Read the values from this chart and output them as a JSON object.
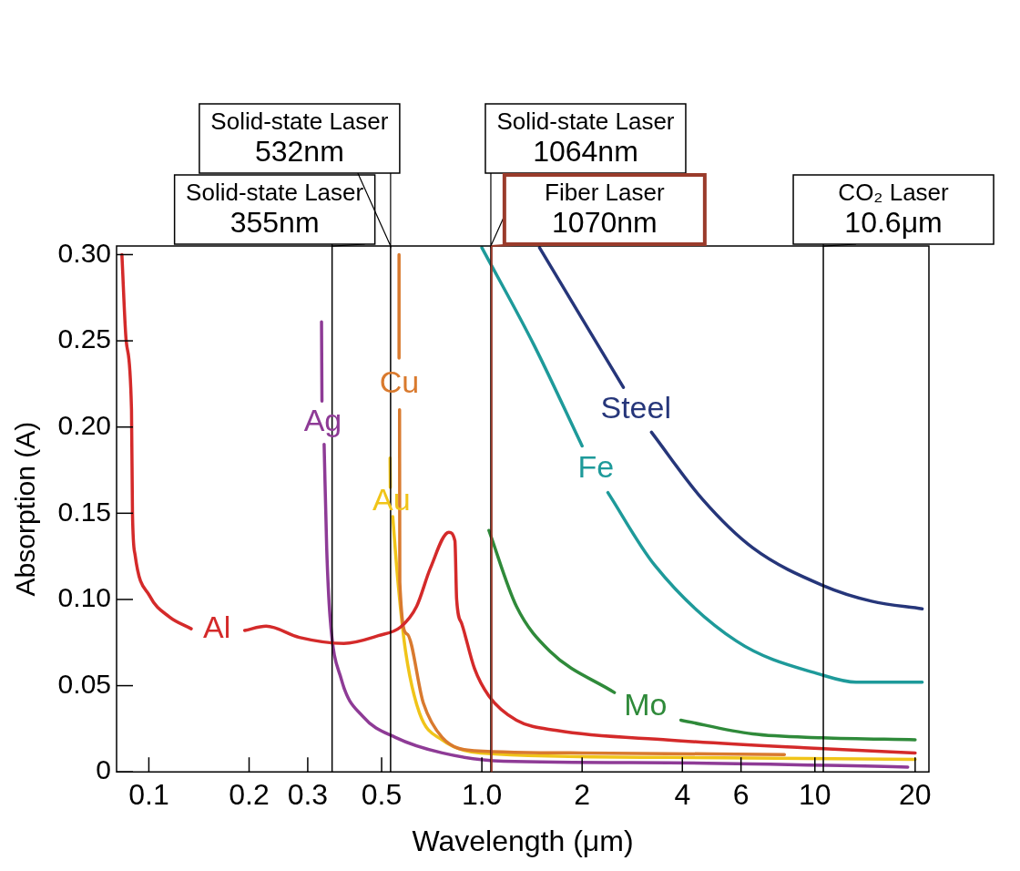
{
  "chart_data": {
    "type": "line",
    "xlabel": "Wavelength (μm)",
    "ylabel": "Absorption (A)",
    "log": "x",
    "legend": false,
    "marker": "none",
    "line_style": "solid",
    "xlim": [
      0.08,
      22
    ],
    "ylim": [
      0,
      0.305
    ],
    "xticks": [
      0.1,
      0.2,
      0.3,
      0.5,
      {
        "value": 1,
        "label": "1.0"
      },
      2,
      4,
      6,
      10,
      20
    ],
    "yticks": [
      0,
      0.05,
      {
        "value": 0.1,
        "label": "0.10"
      },
      0.15,
      {
        "value": 0.2,
        "label": "0.20"
      },
      0.25,
      {
        "value": 0.3,
        "label": "0.30"
      }
    ],
    "series": [
      {
        "name": "Al",
        "color": "#d42a2a",
        "x": [
          0.083,
          0.0855,
          0.0887,
          0.0893,
          0.0909,
          0.1006,
          0.115,
          0.134,
          0.16,
          0.194,
          0.225,
          0.283,
          0.385,
          0.489,
          0.57,
          0.637,
          0.7,
          0.796,
          0.83,
          0.84,
          0.87,
          0.95,
          1.05,
          1.27,
          1.68,
          3.64,
          9.3,
          20
        ],
        "values": [
          0.3,
          0.25,
          0.21,
          0.15,
          0.126,
          0.102,
          0.09,
          0.083,
          null,
          0.082,
          0.0845,
          0.078,
          0.0745,
          0.079,
          0.084,
          0.096,
          0.118,
          0.139,
          0.134,
          0.1,
          0.086,
          0.06,
          0.044,
          0.03,
          0.024,
          0.0185,
          0.014,
          0.011
        ]
      },
      {
        "name": "Ag",
        "color": "#8e3b96",
        "x": [
          0.33,
          0.331,
          0.333,
          0.336,
          0.342,
          0.35,
          0.378,
          0.44,
          0.55,
          0.76,
          1.16,
          3.64,
          19
        ],
        "values": [
          0.261,
          0.215,
          null,
          0.19,
          0.13,
          0.09,
          0.054,
          0.032,
          0.02,
          0.011,
          0.0062,
          0.0053,
          0.0028
        ]
      },
      {
        "name": "Cu",
        "color": "#d97a2e",
        "x": [
          0.564,
          0.564,
          0.565,
          0.566,
          0.567,
          0.596,
          0.667,
          0.76,
          0.95,
          2,
          8.1
        ],
        "values": [
          0.3,
          0.24,
          null,
          0.21,
          0.11,
          0.08,
          0.04,
          0.02,
          0.0123,
          0.011,
          0.01
        ]
      },
      {
        "name": "Au",
        "color": "#f0c419",
        "x": [
          0.53,
          0.531,
          0.535,
          0.54,
          0.56,
          0.59,
          0.65,
          0.76,
          0.99,
          3.6,
          20
        ],
        "values": [
          0.182,
          0.165,
          null,
          0.148,
          0.11,
          0.07,
          0.034,
          0.0185,
          0.011,
          0.0084,
          0.0073
        ]
      },
      {
        "name": "Fe",
        "color": "#1e9a9a",
        "x": [
          1.0,
          1.43,
          2.0,
          2.2,
          2.39,
          3.3,
          5.8,
          10.6,
          13.3,
          21
        ],
        "values": [
          0.304,
          0.248,
          0.189,
          null,
          0.162,
          0.12,
          0.076,
          0.056,
          0.052,
          0.052
        ]
      },
      {
        "name": "Steel",
        "color": "#26367a",
        "x": [
          1.49,
          2.66,
          2.9,
          3.23,
          4.6,
          6.5,
          10.6,
          14.8,
          21
        ],
        "values": [
          0.304,
          0.223,
          null,
          0.197,
          0.158,
          0.13,
          0.108,
          0.099,
          0.0946
        ]
      },
      {
        "name": "Mo",
        "color": "#2f8a3a",
        "x": [
          1.05,
          1.27,
          1.6,
          2.5,
          3.1,
          3.96,
          6.5,
          10.5,
          20
        ],
        "values": [
          0.14,
          0.096,
          0.07,
          0.046,
          null,
          0.03,
          0.022,
          0.0198,
          0.0186
        ]
      }
    ],
    "ref_lines": [
      {
        "axis": "x",
        "value": 0.355,
        "label": "Solid-state Laser\n355nm"
      },
      {
        "axis": "x",
        "value": 0.532,
        "label": "Solid-state Laser\n532nm"
      },
      {
        "axis": "x",
        "value": 1.064,
        "label": "Solid-state Laser\n1064nm"
      },
      {
        "axis": "x",
        "value": 1.07,
        "label": "Fiber Laser\n1070nm",
        "color": "#9a3b2b"
      },
      {
        "axis": "x",
        "value": 10.6,
        "label": "CO₂ Laser\n10.6μm"
      }
    ]
  }
}
